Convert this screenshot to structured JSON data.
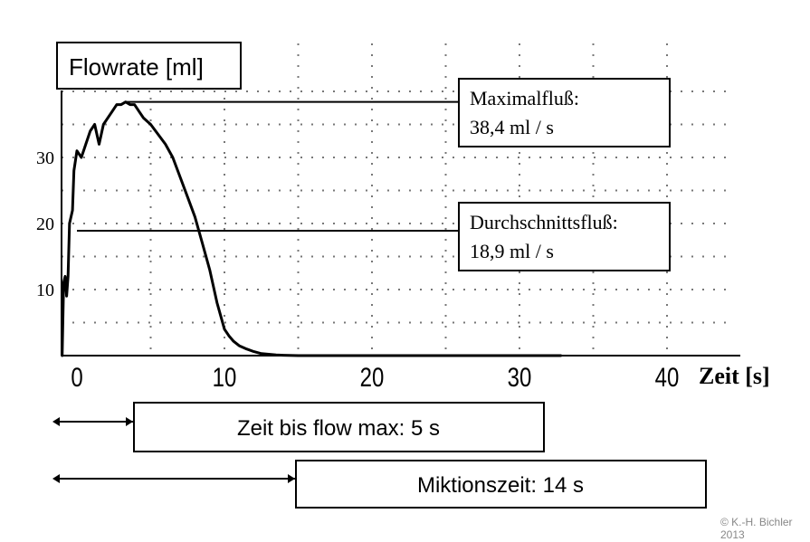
{
  "chart_data": {
    "type": "line",
    "ylabel": "Flowrate [ml]",
    "xlabel": "Zeit [s]",
    "xlim": [
      0,
      43
    ],
    "ylim": [
      0,
      44
    ],
    "x_ticks": [
      0,
      10,
      20,
      30,
      40
    ],
    "x_tick_labels": [
      "0",
      "10",
      "20",
      "30",
      "40"
    ],
    "y_ticks": [
      10,
      20,
      30
    ],
    "y_tick_labels": [
      "10",
      "20",
      "30"
    ],
    "grid": true,
    "series": [
      {
        "x": [
          -1.0,
          -0.9,
          -0.8,
          -0.7,
          -0.6,
          -0.5,
          -0.3,
          -0.2,
          0.0,
          0.3,
          0.6,
          0.9,
          1.2,
          1.5,
          1.8,
          2.1,
          2.4,
          2.7,
          3.0,
          3.3,
          3.6,
          3.9,
          4.2,
          4.5,
          5.0,
          5.5,
          6.0,
          6.5,
          7.0,
          7.5,
          8.0,
          8.5,
          9.0,
          9.5,
          10.0,
          10.3,
          10.6,
          11.0,
          11.5,
          12.0,
          12.5,
          13.0,
          13.5,
          14.0,
          15.0,
          20.0,
          25.0,
          30.0,
          32.0,
          32.8
        ],
        "y": [
          0,
          11,
          12,
          9,
          12,
          20,
          22,
          28,
          31,
          30,
          32,
          34,
          35,
          32,
          35,
          36,
          37,
          38,
          38,
          38.4,
          38,
          38,
          37,
          36,
          35,
          33.5,
          32,
          30,
          27,
          24,
          21,
          17,
          13,
          8,
          4,
          3,
          2.2,
          1.5,
          1.0,
          0.6,
          0.3,
          0.2,
          0.1,
          0.05,
          0,
          0,
          0,
          0,
          0,
          0
        ]
      }
    ],
    "annotations": {
      "max": {
        "label": "Maximalfluß:",
        "value_text": "38,4 ml / s",
        "y": 38.4
      },
      "avg": {
        "label": "Durchschnittsfluß:",
        "value_text": "18,9 ml / s",
        "y": 18.9
      }
    },
    "intervals": [
      {
        "label": "Zeit bis flow max: 5 s",
        "seconds": 5
      },
      {
        "label": "Miktionszeit: 14 s",
        "seconds": 14
      }
    ]
  },
  "copyright": {
    "line1": "© K.-H. Bichler",
    "line2": "2013"
  }
}
